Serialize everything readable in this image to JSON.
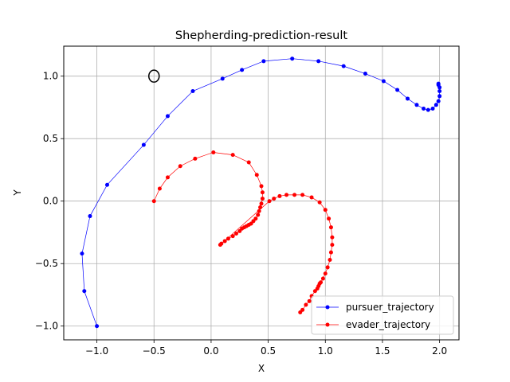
{
  "chart_data": {
    "type": "line",
    "title": "Shepherding-prediction-result",
    "xlabel": "X",
    "ylabel": "Y",
    "xlim": [
      -1.29,
      2.17
    ],
    "ylim": [
      -1.11,
      1.24
    ],
    "xticks": [
      -1.0,
      -0.5,
      0.0,
      0.5,
      1.0,
      1.5,
      2.0
    ],
    "xtick_labels": [
      "−1.0",
      "−0.5",
      "0.0",
      "0.5",
      "1.0",
      "1.5",
      "2.0"
    ],
    "yticks": [
      -1.0,
      -0.5,
      0.0,
      0.5,
      1.0
    ],
    "ytick_labels": [
      "−1.0",
      "−0.5",
      "0.0",
      "0.5",
      "1.0"
    ],
    "grid": true,
    "legend_position": "lower-right",
    "marker": {
      "x": -0.5,
      "y": 1.0,
      "shape": "open-circle",
      "color": "#000000"
    },
    "series": [
      {
        "name": "pursuer_trajectory",
        "color": "#0000ff",
        "points": [
          [
            -1.0,
            -1.0
          ],
          [
            -1.11,
            -0.72
          ],
          [
            -1.13,
            -0.42
          ],
          [
            -1.06,
            -0.12
          ],
          [
            -0.91,
            0.13
          ],
          [
            -0.59,
            0.45
          ],
          [
            -0.38,
            0.68
          ],
          [
            -0.16,
            0.88
          ],
          [
            0.1,
            0.98
          ],
          [
            0.27,
            1.05
          ],
          [
            0.46,
            1.12
          ],
          [
            0.71,
            1.14
          ],
          [
            0.94,
            1.12
          ],
          [
            1.16,
            1.08
          ],
          [
            1.35,
            1.02
          ],
          [
            1.51,
            0.96
          ],
          [
            1.63,
            0.89
          ],
          [
            1.72,
            0.82
          ],
          [
            1.8,
            0.77
          ],
          [
            1.86,
            0.74
          ],
          [
            1.9,
            0.73
          ],
          [
            1.94,
            0.74
          ],
          [
            1.97,
            0.77
          ],
          [
            1.99,
            0.8
          ],
          [
            2.0,
            0.84
          ],
          [
            2.0,
            0.88
          ],
          [
            2.0,
            0.91
          ],
          [
            1.99,
            0.93
          ],
          [
            1.99,
            0.94
          ]
        ]
      },
      {
        "name": "evader_trajectory",
        "color": "#ff0000",
        "points": [
          [
            -0.5,
            0.0
          ],
          [
            -0.45,
            0.1
          ],
          [
            -0.38,
            0.19
          ],
          [
            -0.27,
            0.28
          ],
          [
            -0.14,
            0.34
          ],
          [
            0.02,
            0.39
          ],
          [
            0.19,
            0.37
          ],
          [
            0.33,
            0.31
          ],
          [
            0.4,
            0.21
          ],
          [
            0.44,
            0.12
          ],
          [
            0.45,
            0.07
          ],
          [
            0.45,
            0.02
          ],
          [
            0.44,
            -0.02
          ],
          [
            0.43,
            -0.05
          ],
          [
            0.42,
            -0.08
          ],
          [
            0.41,
            -0.11
          ],
          [
            0.39,
            -0.14
          ],
          [
            0.37,
            -0.16
          ],
          [
            0.35,
            -0.18
          ],
          [
            0.33,
            -0.19
          ],
          [
            0.31,
            -0.2
          ],
          [
            0.29,
            -0.21
          ],
          [
            0.27,
            -0.22
          ],
          [
            0.25,
            -0.24
          ],
          [
            0.22,
            -0.26
          ],
          [
            0.19,
            -0.28
          ],
          [
            0.15,
            -0.3
          ],
          [
            0.12,
            -0.32
          ],
          [
            0.09,
            -0.34
          ],
          [
            0.08,
            -0.35
          ],
          [
            0.51,
            0.0
          ],
          [
            0.55,
            0.02
          ],
          [
            0.6,
            0.04
          ],
          [
            0.66,
            0.05
          ],
          [
            0.73,
            0.05
          ],
          [
            0.8,
            0.05
          ],
          [
            0.88,
            0.03
          ],
          [
            0.95,
            -0.01
          ],
          [
            1.0,
            -0.07
          ],
          [
            1.03,
            -0.14
          ],
          [
            1.05,
            -0.21
          ],
          [
            1.06,
            -0.29
          ],
          [
            1.06,
            -0.35
          ],
          [
            1.05,
            -0.41
          ],
          [
            1.04,
            -0.47
          ],
          [
            1.02,
            -0.53
          ],
          [
            1.0,
            -0.58
          ],
          [
            0.98,
            -0.62
          ],
          [
            0.96,
            -0.65
          ],
          [
            0.95,
            -0.66
          ],
          [
            0.94,
            -0.68
          ],
          [
            0.93,
            -0.7
          ],
          [
            0.91,
            -0.72
          ],
          [
            0.88,
            -0.76
          ],
          [
            0.86,
            -0.8
          ],
          [
            0.83,
            -0.83
          ],
          [
            0.8,
            -0.87
          ],
          [
            0.78,
            -0.89
          ]
        ]
      }
    ]
  }
}
